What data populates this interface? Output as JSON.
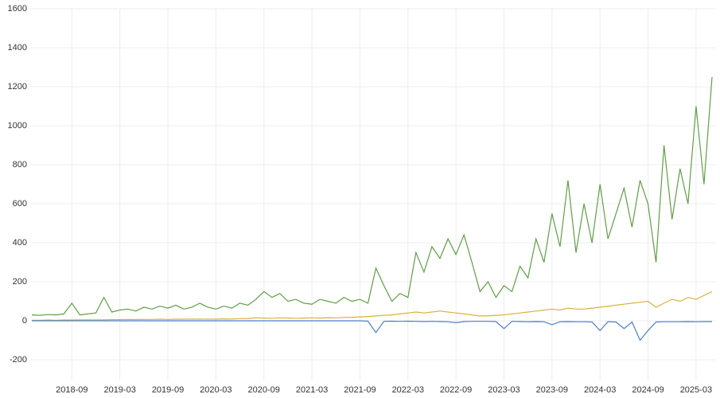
{
  "chart_data": {
    "type": "line",
    "x": [
      "2018-04",
      "2018-05",
      "2018-06",
      "2018-07",
      "2018-08",
      "2018-09",
      "2018-10",
      "2018-11",
      "2018-12",
      "2019-01",
      "2019-02",
      "2019-03",
      "2019-04",
      "2019-05",
      "2019-06",
      "2019-07",
      "2019-08",
      "2019-09",
      "2019-10",
      "2019-11",
      "2019-12",
      "2020-01",
      "2020-02",
      "2020-03",
      "2020-04",
      "2020-05",
      "2020-06",
      "2020-07",
      "2020-08",
      "2020-09",
      "2020-10",
      "2020-11",
      "2020-12",
      "2021-01",
      "2021-02",
      "2021-03",
      "2021-04",
      "2021-05",
      "2021-06",
      "2021-07",
      "2021-08",
      "2021-09",
      "2021-10",
      "2021-11",
      "2021-12",
      "2022-01",
      "2022-02",
      "2022-03",
      "2022-04",
      "2022-05",
      "2022-06",
      "2022-07",
      "2022-08",
      "2022-09",
      "2022-10",
      "2022-11",
      "2022-12",
      "2023-01",
      "2023-02",
      "2023-03",
      "2023-04",
      "2023-05",
      "2023-06",
      "2023-07",
      "2023-08",
      "2023-09",
      "2023-10",
      "2023-11",
      "2023-12",
      "2024-01",
      "2024-02",
      "2024-03",
      "2024-04",
      "2024-05",
      "2024-06",
      "2024-07",
      "2024-08",
      "2024-09",
      "2024-10",
      "2024-11",
      "2024-12",
      "2025-01",
      "2025-02",
      "2025-03",
      "2025-04",
      "2025-05"
    ],
    "series": [
      {
        "color": "#5f9e46",
        "values": [
          30,
          28,
          32,
          30,
          35,
          90,
          30,
          35,
          40,
          120,
          45,
          55,
          60,
          50,
          70,
          60,
          75,
          65,
          80,
          60,
          70,
          90,
          70,
          60,
          75,
          65,
          90,
          80,
          110,
          150,
          120,
          140,
          100,
          110,
          90,
          85,
          110,
          100,
          90,
          120,
          100,
          110,
          90,
          270,
          180,
          100,
          140,
          120,
          350,
          250,
          380,
          320,
          420,
          340,
          440,
          300,
          150,
          200,
          120,
          180,
          150,
          280,
          220,
          420,
          300,
          550,
          380,
          720,
          350,
          600,
          400,
          700,
          420,
          550,
          680,
          480,
          720,
          600,
          300,
          900,
          520,
          780,
          600,
          1100,
          700,
          1250
        ]
      },
      {
        "color": "#d8b23a",
        "values": [
          3,
          3,
          4,
          3,
          4,
          4,
          5,
          5,
          5,
          5,
          6,
          6,
          7,
          6,
          7,
          7,
          8,
          7,
          8,
          8,
          9,
          8,
          9,
          8,
          10,
          9,
          11,
          12,
          15,
          14,
          13,
          15,
          14,
          13,
          14,
          15,
          14,
          16,
          15,
          17,
          18,
          20,
          22,
          25,
          28,
          30,
          35,
          40,
          45,
          40,
          45,
          50,
          45,
          40,
          35,
          30,
          25,
          25,
          28,
          30,
          35,
          40,
          45,
          50,
          55,
          60,
          55,
          65,
          60,
          60,
          65,
          70,
          75,
          80,
          85,
          90,
          95,
          100,
          70,
          90,
          110,
          100,
          120,
          110,
          130,
          150
        ]
      },
      {
        "color": "#4a7fd0",
        "values": [
          0,
          0,
          0,
          0,
          0,
          0,
          0,
          0,
          0,
          0,
          0,
          0,
          0,
          0,
          0,
          0,
          0,
          0,
          0,
          0,
          0,
          0,
          0,
          0,
          0,
          0,
          0,
          0,
          0,
          0,
          0,
          0,
          0,
          0,
          0,
          0,
          0,
          0,
          0,
          0,
          0,
          0,
          -2,
          -60,
          -3,
          -2,
          -3,
          -2,
          -3,
          -4,
          -3,
          -4,
          -5,
          -10,
          -4,
          -3,
          -3,
          -3,
          -4,
          -40,
          -3,
          -4,
          -5,
          -4,
          -5,
          -20,
          -5,
          -4,
          -5,
          -5,
          -6,
          -50,
          -5,
          -6,
          -40,
          -6,
          -100,
          -50,
          -6,
          -5,
          -5,
          -5,
          -4,
          -5,
          -4,
          -4
        ]
      }
    ],
    "xlim": [
      "2018-04",
      "2025-05"
    ],
    "xticks": [
      "2018-09",
      "2019-03",
      "2019-09",
      "2020-03",
      "2020-09",
      "2021-03",
      "2021-09",
      "2022-03",
      "2022-09",
      "2023-03",
      "2023-09",
      "2024-03",
      "2024-09",
      "2025-03"
    ],
    "ylim": [
      -200,
      1600
    ],
    "yticks": [
      -200,
      0,
      200,
      400,
      600,
      800,
      1000,
      1200,
      1400,
      1600
    ],
    "grid": true
  }
}
